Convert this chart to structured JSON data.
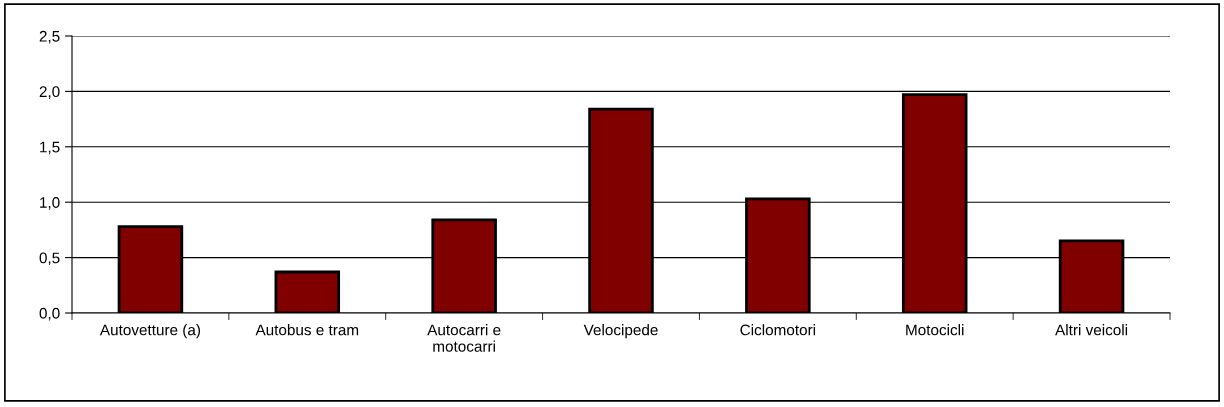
{
  "chart_data": {
    "type": "bar",
    "categories": [
      "Autovetture (a)",
      "Autobus e tram",
      "Autocarri e\nmotocarri",
      "Velocipede",
      "Ciclomotori",
      "Motocicli",
      "Altri veicoli"
    ],
    "values": [
      0.78,
      0.37,
      0.84,
      1.84,
      1.03,
      1.97,
      0.65
    ],
    "color": "#800000",
    "ylim": [
      0,
      2.5
    ],
    "yticks": [
      {
        "value": 0,
        "label": "0,0"
      },
      {
        "value": 0.5,
        "label": "0,5"
      },
      {
        "value": 1,
        "label": "1,0"
      },
      {
        "value": 1.5,
        "label": "1,5"
      },
      {
        "value": 2,
        "label": "2,0"
      },
      {
        "value": 2.5,
        "label": "2,5"
      }
    ],
    "grid": "y",
    "legend": false
  }
}
